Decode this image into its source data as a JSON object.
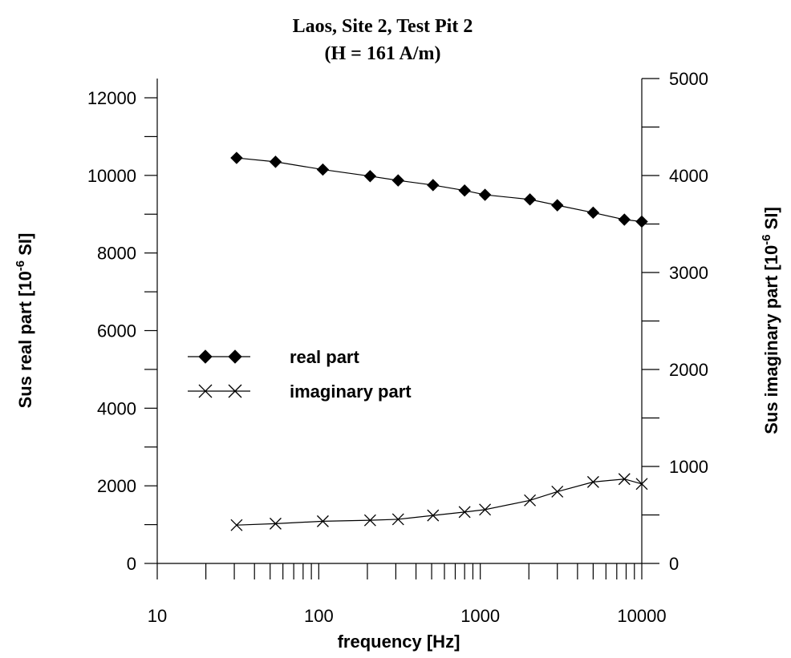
{
  "chart_data": {
    "type": "line",
    "title": "Laos, Site 2, Test Pit 2",
    "subtitle": "(H = 161 A/m)",
    "xlabel": "frequency [Hz]",
    "ylabel": "Sus real part [10-6 SI]",
    "ylabel_main": "Sus real part [10",
    "ylabel_exp": "-6",
    "ylabel_end": " SI]",
    "y2label": "Sus imaginary part [10-6 SI]",
    "y2label_main": "Sus imaginary part [10",
    "y2label_exp": "-6",
    "y2label_end": " SI]",
    "x_scale": "log",
    "xlim": [
      10,
      10000
    ],
    "ylim": [
      0,
      12000
    ],
    "y2lim": [
      0,
      5000
    ],
    "x_ticks": [
      "10",
      "100",
      "1000",
      "10000"
    ],
    "y_ticks": [
      "0",
      "2000",
      "4000",
      "6000",
      "8000",
      "10000",
      "12000"
    ],
    "y2_ticks": [
      "0",
      "1000",
      "2000",
      "3000",
      "4000",
      "5000"
    ],
    "grid": false,
    "legend_position": "center-left",
    "series": [
      {
        "name": "real part",
        "axis": "left",
        "marker": "diamond",
        "x": [
          31,
          54,
          106,
          208,
          310,
          510,
          800,
          1070,
          2030,
          3000,
          5000,
          7800,
          10000
        ],
        "y": [
          10450,
          10350,
          10150,
          9980,
          9870,
          9750,
          9610,
          9500,
          9380,
          9230,
          9040,
          8860,
          8810
        ]
      },
      {
        "name": "imaginary part",
        "axis": "right",
        "marker": "cross",
        "x": [
          31,
          54,
          106,
          208,
          310,
          510,
          800,
          1070,
          2030,
          3000,
          5000,
          7800,
          10000
        ],
        "y": [
          395,
          410,
          435,
          445,
          455,
          495,
          530,
          555,
          650,
          740,
          840,
          870,
          820
        ]
      }
    ]
  }
}
